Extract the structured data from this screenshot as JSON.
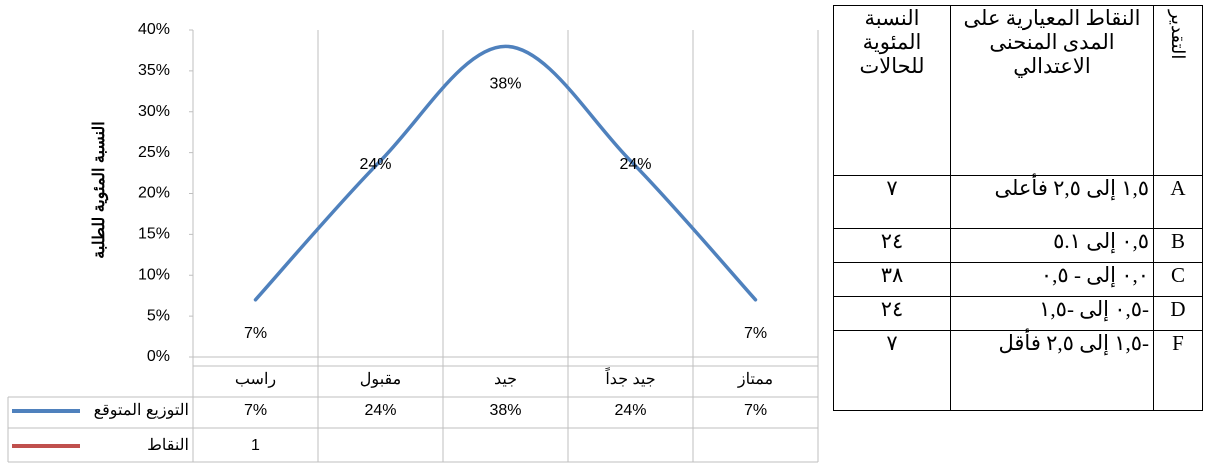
{
  "chart_data": {
    "type": "line",
    "y_axis_label": "النسبة المئوية للطلبة",
    "categories": [
      "راسب",
      "مقبول",
      "جيد",
      "جيد جداً",
      "ممتاز"
    ],
    "series": [
      {
        "name": "التوزيع المتوقع",
        "color": "#4f81bd",
        "values": [
          7,
          24,
          38,
          24,
          7
        ],
        "value_labels": [
          "7%",
          "24%",
          "38%",
          "24%",
          "7%"
        ]
      },
      {
        "name": "النقاط",
        "color": "#c0504d",
        "values": [
          1,
          null,
          null,
          null,
          null
        ]
      }
    ],
    "ylim": [
      0,
      40
    ],
    "yticks": [
      {
        "value": 0,
        "label": "0%"
      },
      {
        "value": 5,
        "label": "5%"
      },
      {
        "value": 10,
        "label": "10%"
      },
      {
        "value": 15,
        "label": "15%"
      },
      {
        "value": 20,
        "label": "20%"
      },
      {
        "value": 25,
        "label": "25%"
      },
      {
        "value": 30,
        "label": "30%"
      },
      {
        "value": 35,
        "label": "35%"
      },
      {
        "value": 40,
        "label": "40%"
      }
    ],
    "smooth": true
  },
  "table": {
    "header": [
      "التقدير",
      "النقاط المعيارية على المدى المنحنى الاعتدالي",
      "النسبة المئوية للحالات"
    ],
    "rows": [
      [
        "A",
        "١,٥ إلى ٢,٥ فأعلى",
        "٧"
      ],
      [
        "B",
        "٠,٥ إلى ٥.١",
        "٢٤"
      ],
      [
        "C",
        "٠,٠ إلى - ٠,٥",
        "٣٨"
      ],
      [
        "D",
        "-٠,٥ إلى -١,٥",
        "٢٤"
      ],
      [
        "F",
        "-١,٥ إلى ٢,٥ فأقل",
        "٧"
      ]
    ]
  }
}
